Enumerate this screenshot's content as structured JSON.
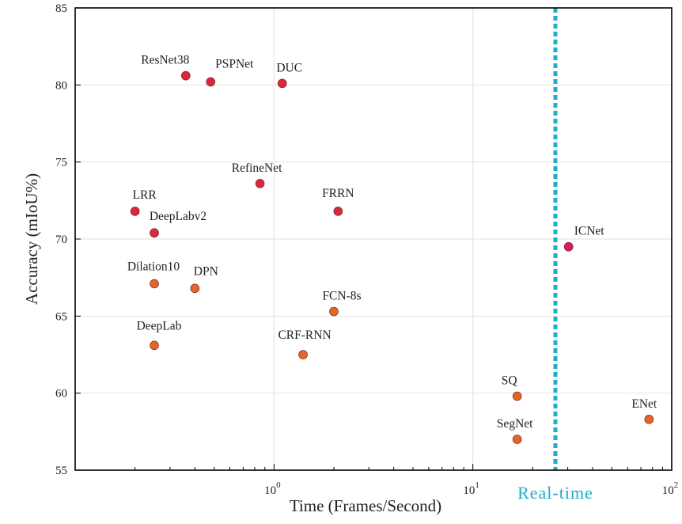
{
  "chart_data": {
    "type": "scatter",
    "title": "",
    "xlabel": "Time (Frames/Second)",
    "ylabel": "Accuracy (mIoU%)",
    "xscale": "log",
    "xlim": [
      0.1,
      100
    ],
    "ylim": [
      55,
      85
    ],
    "yticks": [
      55,
      60,
      65,
      70,
      75,
      80,
      85
    ],
    "xtick_labels": [
      {
        "value": 1,
        "base": "10",
        "exp": "0"
      },
      {
        "value": 10,
        "base": "10",
        "exp": "1"
      },
      {
        "value": 100,
        "base": "10",
        "exp": "2"
      }
    ],
    "grid": true,
    "realtime": {
      "x": 26,
      "label": "Real-time",
      "color": "#1ab0c8"
    },
    "colors": {
      "red": "#d42a3c",
      "orange": "#e0672a",
      "magenta": "#d61a6a"
    },
    "points": [
      {
        "label": "ResNet38",
        "x": 0.36,
        "y": 80.6,
        "color": "red"
      },
      {
        "label": "PSPNet",
        "x": 0.48,
        "y": 80.2,
        "color": "red"
      },
      {
        "label": "DUC",
        "x": 1.1,
        "y": 80.1,
        "color": "red"
      },
      {
        "label": "RefineNet",
        "x": 0.85,
        "y": 73.6,
        "color": "red"
      },
      {
        "label": "LRR",
        "x": 0.2,
        "y": 71.8,
        "color": "red"
      },
      {
        "label": "FRRN",
        "x": 2.1,
        "y": 71.8,
        "color": "red"
      },
      {
        "label": "DeepLabv2",
        "x": 0.25,
        "y": 70.4,
        "color": "red"
      },
      {
        "label": "ICNet",
        "x": 30.3,
        "y": 69.5,
        "color": "magenta"
      },
      {
        "label": "Dilation10",
        "x": 0.25,
        "y": 67.1,
        "color": "orange"
      },
      {
        "label": "DPN",
        "x": 0.4,
        "y": 66.8,
        "color": "orange"
      },
      {
        "label": "FCN-8s",
        "x": 2.0,
        "y": 65.3,
        "color": "orange"
      },
      {
        "label": "DeepLab",
        "x": 0.25,
        "y": 63.1,
        "color": "orange"
      },
      {
        "label": "CRF-RNN",
        "x": 1.4,
        "y": 62.5,
        "color": "orange"
      },
      {
        "label": "SQ",
        "x": 16.7,
        "y": 59.8,
        "color": "orange"
      },
      {
        "label": "SegNet",
        "x": 16.7,
        "y": 57.0,
        "color": "orange"
      },
      {
        "label": "ENet",
        "x": 76.9,
        "y": 58.3,
        "color": "orange"
      }
    ]
  }
}
